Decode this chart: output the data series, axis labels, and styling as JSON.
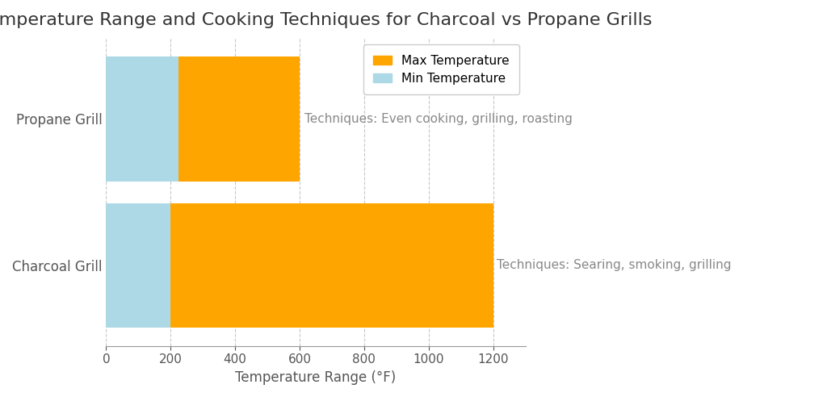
{
  "title": "Temperature Range and Cooking Techniques for Charcoal vs Propane Grills",
  "xlabel": "Temperature Range (°F)",
  "categories": [
    "Charcoal Grill",
    "Propane Grill"
  ],
  "min_temps": [
    200,
    225
  ],
  "max_temps": [
    1200,
    600
  ],
  "techniques": [
    "Techniques: Searing, smoking, grilling",
    "Techniques: Even cooking, grilling, roasting"
  ],
  "color_min": "#ADD8E6",
  "color_max": "#FFA500",
  "xlim": [
    0,
    1300
  ],
  "bar_height": 0.85,
  "background_color": "#ffffff",
  "grid_color": "#c8c8c8",
  "title_fontsize": 16,
  "label_fontsize": 12,
  "tick_fontsize": 11,
  "annotation_fontsize": 11,
  "annotation_color": "#888888",
  "legend_entries": [
    "Max Temperature",
    "Min Temperature"
  ],
  "ylim": [
    -0.55,
    1.55
  ]
}
